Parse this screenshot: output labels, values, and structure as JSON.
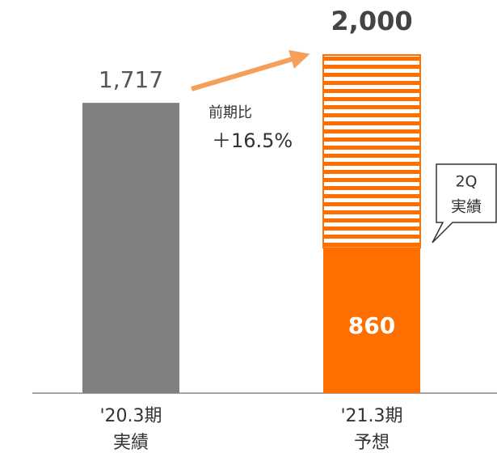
{
  "chart_data": {
    "type": "bar",
    "categories": [
      [
        "'20.3期",
        "実績"
      ],
      [
        "'21.3期",
        "予想"
      ]
    ],
    "series": [
      {
        "color": "#808080",
        "values": [
          1717,
          null
        ],
        "value_labels": [
          "1,717",
          null
        ]
      },
      {
        "color": "#ff6f00",
        "values": [
          null,
          860
        ],
        "value_labels": [
          null,
          "860"
        ]
      },
      {
        "color": "#ff6f00",
        "pattern": "stripes",
        "values": [
          null,
          1140
        ]
      }
    ],
    "totals": [
      null,
      2000
    ],
    "total_labels": [
      null,
      "2,000"
    ],
    "ylim": [
      0,
      2000
    ],
    "annotations": {
      "growth": [
        "前期比",
        "＋16.5%"
      ],
      "callout": [
        "2Q",
        "実績"
      ]
    }
  }
}
